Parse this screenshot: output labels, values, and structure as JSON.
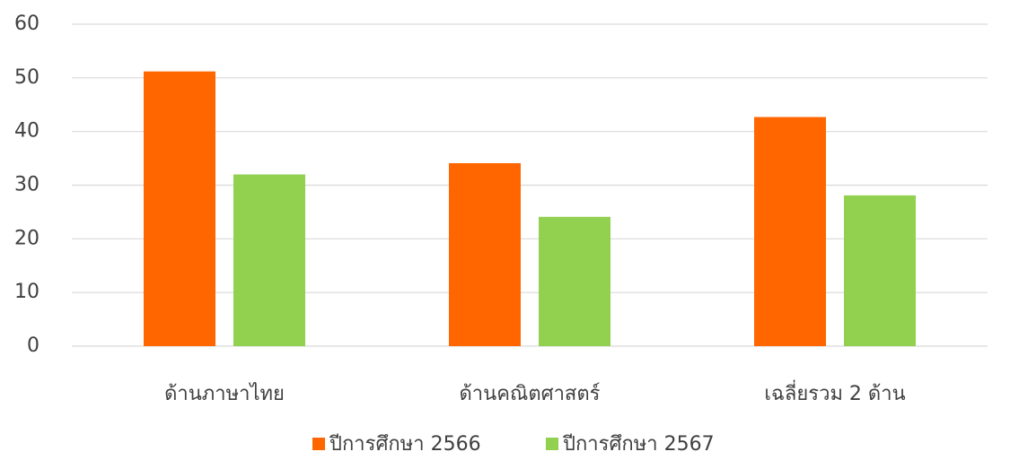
{
  "chart_data": {
    "type": "bar",
    "categories": [
      "ด้านภาษาไทย",
      "ด้านคณิตศาสตร์",
      "เฉลี่ยรวม 2 ด้าน"
    ],
    "series": [
      {
        "name": "ปีการศึกษา 2566",
        "color": "#ff6600",
        "values": [
          51.2,
          34.1,
          42.7
        ]
      },
      {
        "name": "ปีการศึกษา 2567",
        "color": "#92d050",
        "values": [
          32,
          24.1,
          28.1
        ]
      }
    ],
    "ylim": [
      0,
      60
    ],
    "yticks": [
      0,
      10,
      20,
      30,
      40,
      50,
      60
    ],
    "grid": true,
    "legend": "bottom"
  }
}
